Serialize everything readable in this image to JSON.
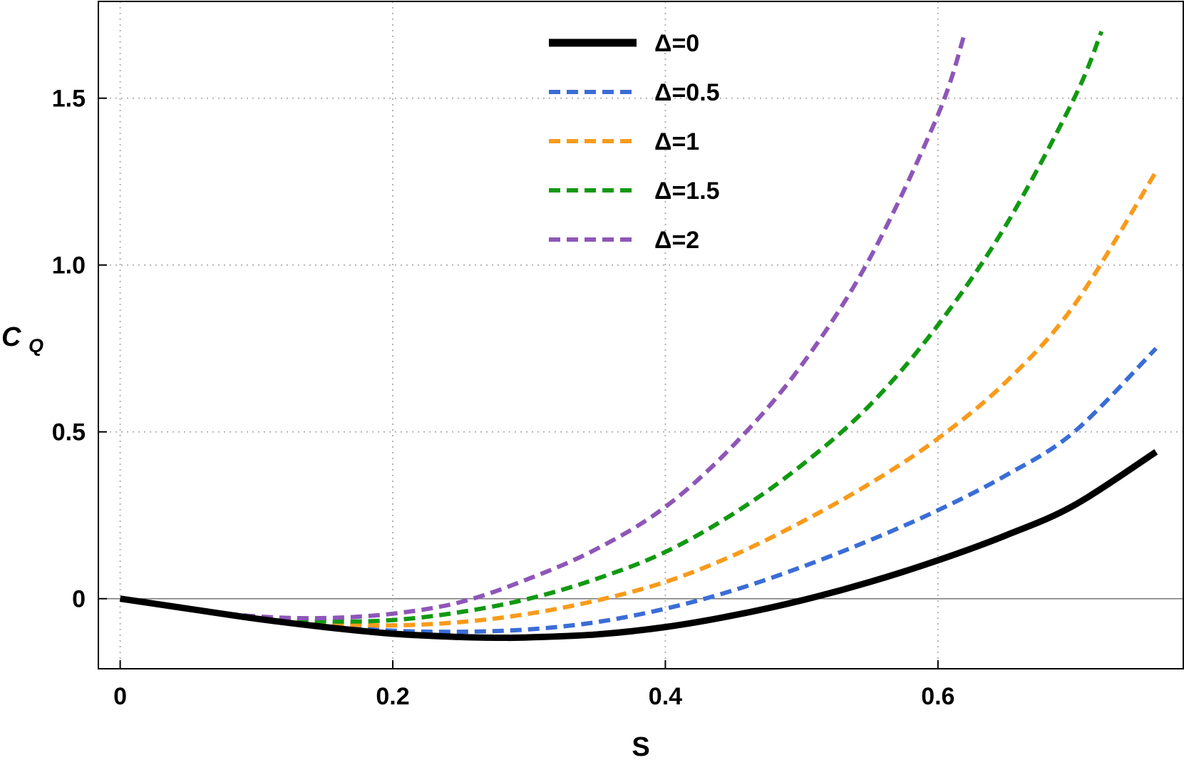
{
  "chart_data": {
    "type": "line",
    "title": "",
    "xlabel": "S",
    "ylabel": "C",
    "ylabel_subscript": "Q",
    "xlim": [
      -0.016,
      0.78
    ],
    "ylim": [
      -0.21,
      1.79
    ],
    "xticks": [
      {
        "value": 0,
        "label": "0"
      },
      {
        "value": 0.2,
        "label": "0.2"
      },
      {
        "value": 0.4,
        "label": "0.4"
      },
      {
        "value": 0.6,
        "label": "0.6"
      }
    ],
    "yticks": [
      {
        "value": 0,
        "label": "0"
      },
      {
        "value": 0.5,
        "label": "0.5"
      },
      {
        "value": 1.0,
        "label": "1.0"
      },
      {
        "value": 1.5,
        "label": "1.5"
      }
    ],
    "grid": true,
    "legend_position": "top-center",
    "series": [
      {
        "name": "Δ=0",
        "color": "#000000",
        "style": "solid",
        "x": [
          0,
          0.05,
          0.1,
          0.15,
          0.2,
          0.25,
          0.28,
          0.3,
          0.35,
          0.4,
          0.45,
          0.5,
          0.55,
          0.6,
          0.65,
          0.7,
          0.76
        ],
        "y": [
          0,
          -0.03,
          -0.06,
          -0.085,
          -0.105,
          -0.115,
          -0.117,
          -0.116,
          -0.107,
          -0.085,
          -0.05,
          -0.005,
          0.05,
          0.115,
          0.19,
          0.28,
          0.44
        ]
      },
      {
        "name": "Δ=0.5",
        "color": "#3a6dd6",
        "style": "dashed",
        "x": [
          0,
          0.05,
          0.1,
          0.15,
          0.2,
          0.25,
          0.3,
          0.35,
          0.4,
          0.45,
          0.5,
          0.55,
          0.6,
          0.65,
          0.7,
          0.76
        ],
        "y": [
          0,
          -0.03,
          -0.058,
          -0.08,
          -0.096,
          -0.099,
          -0.092,
          -0.07,
          -0.03,
          0.025,
          0.095,
          0.175,
          0.265,
          0.37,
          0.5,
          0.75
        ]
      },
      {
        "name": "Δ=1",
        "color": "#f89b1c",
        "style": "dashed",
        "x": [
          0,
          0.05,
          0.1,
          0.15,
          0.2,
          0.25,
          0.3,
          0.35,
          0.4,
          0.45,
          0.5,
          0.55,
          0.6,
          0.65,
          0.7,
          0.76
        ],
        "y": [
          0,
          -0.03,
          -0.057,
          -0.074,
          -0.08,
          -0.07,
          -0.045,
          -0.005,
          0.05,
          0.13,
          0.23,
          0.345,
          0.48,
          0.65,
          0.88,
          1.28
        ]
      },
      {
        "name": "Δ=1.5",
        "color": "#119911",
        "style": "dashed",
        "x": [
          0,
          0.05,
          0.1,
          0.15,
          0.2,
          0.25,
          0.3,
          0.35,
          0.4,
          0.45,
          0.5,
          0.55,
          0.6,
          0.65,
          0.7,
          0.72
        ],
        "y": [
          0,
          -0.03,
          -0.055,
          -0.068,
          -0.064,
          -0.04,
          0.0,
          0.06,
          0.14,
          0.255,
          0.4,
          0.58,
          0.82,
          1.12,
          1.5,
          1.7
        ]
      },
      {
        "name": "Δ=2",
        "color": "#8e56b8",
        "style": "dashed",
        "x": [
          0,
          0.05,
          0.1,
          0.15,
          0.2,
          0.25,
          0.3,
          0.35,
          0.4,
          0.45,
          0.5,
          0.55,
          0.6,
          0.62
        ],
        "y": [
          0,
          -0.03,
          -0.053,
          -0.058,
          -0.045,
          -0.01,
          0.06,
          0.15,
          0.275,
          0.46,
          0.7,
          1.02,
          1.45,
          1.7
        ]
      }
    ]
  }
}
